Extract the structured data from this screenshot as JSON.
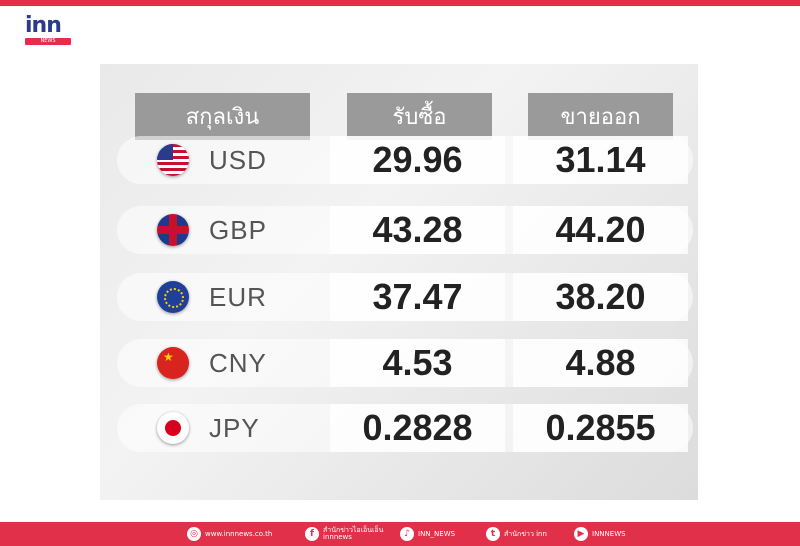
{
  "brand": {
    "logo_text": "inn",
    "logo_sub": "NEWS",
    "accent": "#e0304a"
  },
  "table": {
    "headers": [
      "สกุลเงิน",
      "รับซื้อ",
      "ขายออก"
    ],
    "rows": [
      {
        "flag": "us-flag",
        "currency": "USD",
        "buy": "29.96",
        "sell": "31.14"
      },
      {
        "flag": "uk-flag",
        "currency": "GBP",
        "buy": "43.28",
        "sell": "44.20"
      },
      {
        "flag": "eu-flag",
        "currency": "EUR",
        "buy": "37.47",
        "sell": "38.20"
      },
      {
        "flag": "china-flag",
        "currency": "CNY",
        "buy": "4.53",
        "sell": "4.88"
      },
      {
        "flag": "japan-flag",
        "currency": "JPY",
        "buy": "0.2828",
        "sell": "0.2855"
      }
    ]
  },
  "footer": {
    "website": "www.innnews.co.th",
    "facebook": "สำนักข่าวไอเอ็นเอ็น innnews",
    "tiktok": "INN_NEWS",
    "twitter": "สำนักข่าว inn",
    "youtube": "INNNEWS"
  }
}
